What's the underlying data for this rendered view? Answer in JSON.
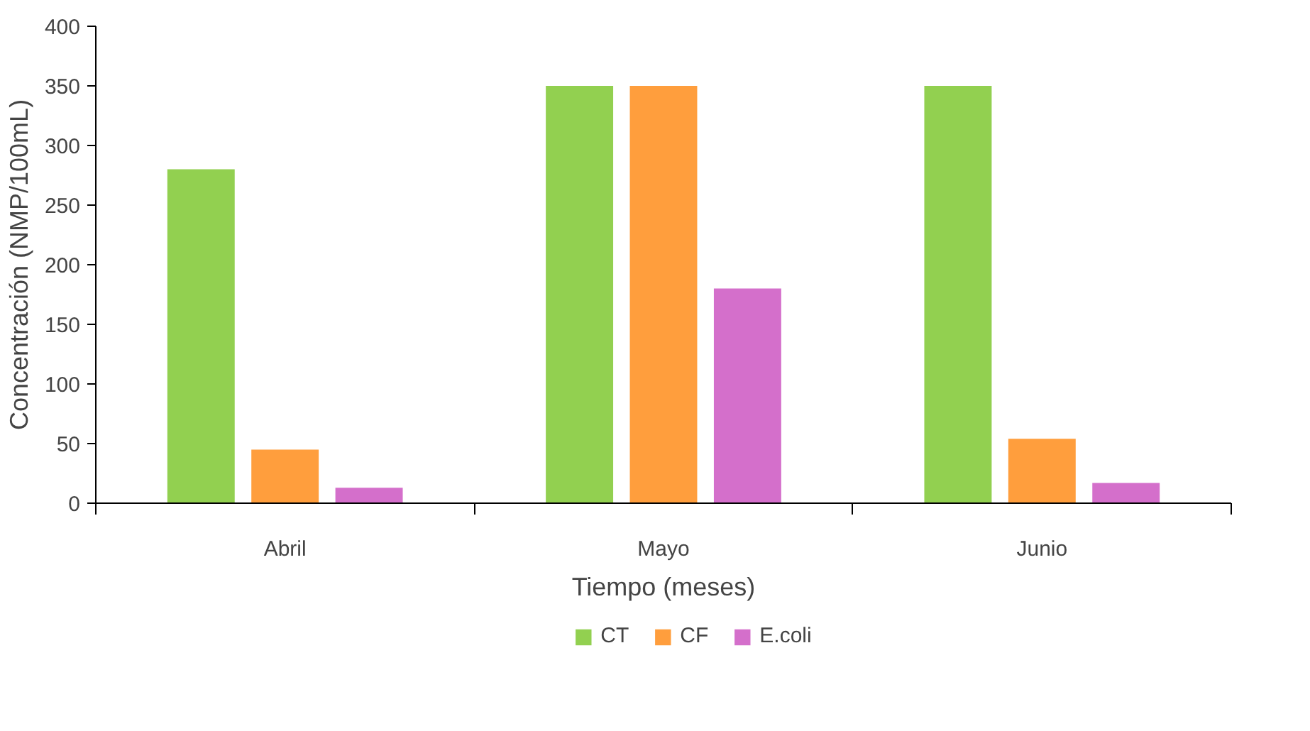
{
  "chart_data": {
    "type": "bar",
    "xlabel": "Tiempo (meses)",
    "ylabel": "Concentración (NMP/100mL)",
    "categories": [
      "Abril",
      "Mayo",
      "Junio"
    ],
    "series": [
      {
        "name": "CT",
        "color": "#92d050",
        "values": [
          280,
          350,
          350
        ]
      },
      {
        "name": "CF",
        "color": "#ff9e3d",
        "values": [
          45,
          350,
          54
        ]
      },
      {
        "name": "E.coli",
        "color": "#d46fcb",
        "values": [
          13,
          180,
          17
        ]
      }
    ],
    "ylim": [
      0,
      400
    ],
    "yticks": [
      0,
      50,
      100,
      150,
      200,
      250,
      300,
      350,
      400
    ],
    "grid": false,
    "legend": "bottom"
  }
}
